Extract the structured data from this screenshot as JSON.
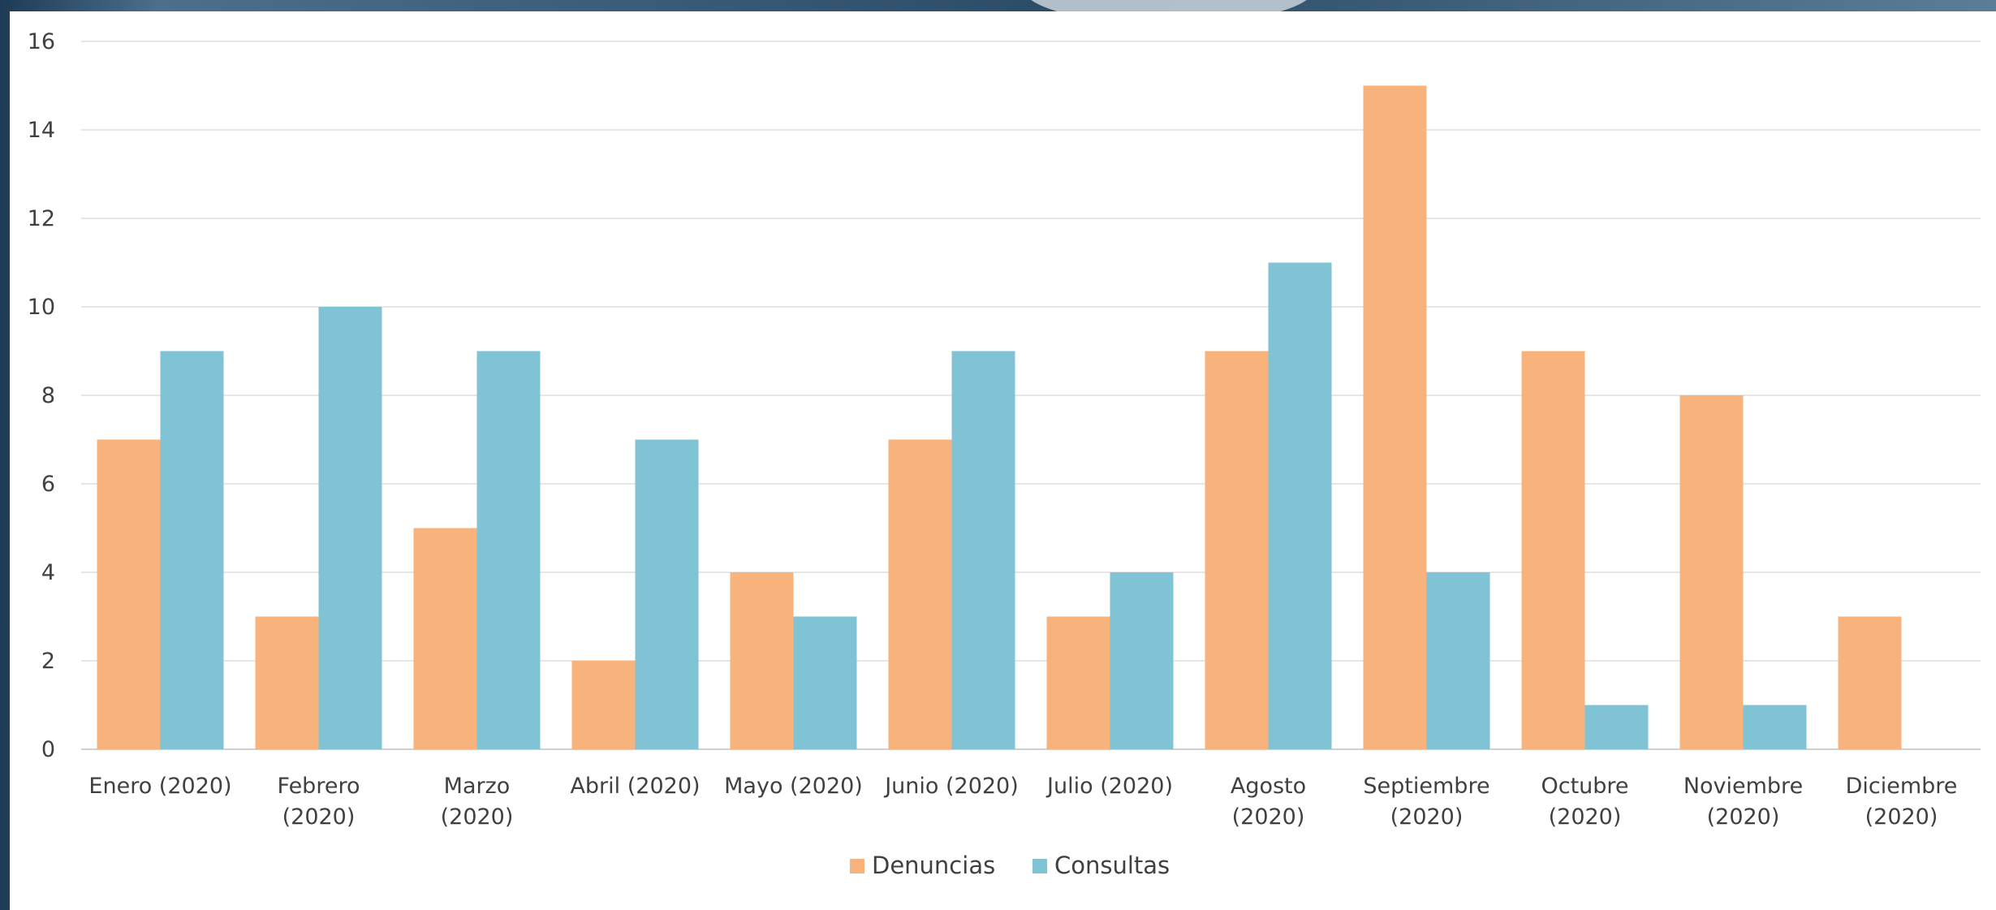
{
  "colors": {
    "denuncias": "#f8b27c",
    "consultas": "#80c3d5",
    "grid": "#e6e6e6",
    "text": "#404040"
  },
  "chart_data": {
    "type": "bar",
    "title": "",
    "xlabel": "",
    "ylabel": "",
    "ylim": [
      0,
      16
    ],
    "yticks": [
      "0",
      "2",
      "4",
      "6",
      "8",
      "10",
      "12",
      "14",
      "16"
    ],
    "grid": true,
    "legend_position": "bottom",
    "categories": [
      [
        "Enero (2020)"
      ],
      [
        "Febrero",
        "(2020)"
      ],
      [
        "Marzo",
        "(2020)"
      ],
      [
        "Abril (2020)"
      ],
      [
        "Mayo (2020)"
      ],
      [
        "Junio (2020)"
      ],
      [
        "Julio (2020)"
      ],
      [
        "Agosto",
        "(2020)"
      ],
      [
        "Septiembre",
        "(2020)"
      ],
      [
        "Octubre",
        "(2020)"
      ],
      [
        "Noviembre",
        "(2020)"
      ],
      [
        "Diciembre",
        "(2020)"
      ]
    ],
    "series": [
      {
        "name": "Denuncias",
        "values": [
          7,
          3,
          5,
          2,
          4,
          7,
          3,
          9,
          15,
          9,
          8,
          3
        ]
      },
      {
        "name": "Consultas",
        "values": [
          9,
          10,
          9,
          7,
          3,
          9,
          4,
          11,
          4,
          1,
          1,
          0
        ]
      }
    ]
  }
}
